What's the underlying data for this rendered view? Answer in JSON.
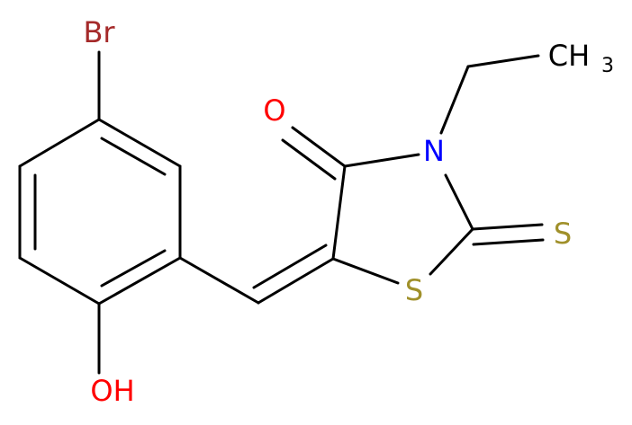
{
  "atoms": [
    {
      "label": "Br"
    },
    {
      "label": "OH"
    },
    {
      "label": "O"
    },
    {
      "label": "N"
    },
    {
      "label": "S"
    },
    {
      "label": "S"
    },
    {
      "label": "CH",
      "subscript": "3"
    }
  ]
}
